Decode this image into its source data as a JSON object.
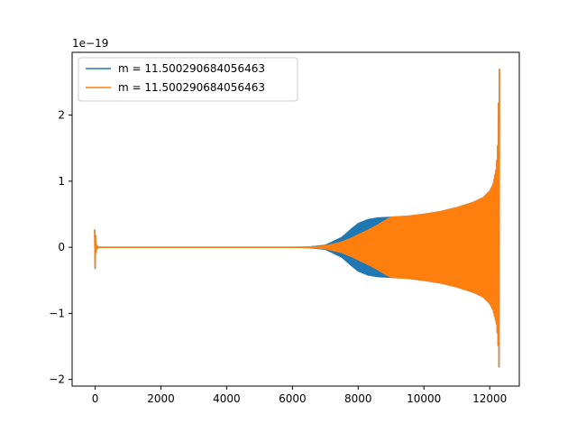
{
  "chart_data": {
    "type": "line",
    "offset_text": "1e−19",
    "xlim": [
      -700,
      12900
    ],
    "ylim": [
      -2.1,
      2.95
    ],
    "x_ticks": [
      0,
      2000,
      4000,
      6000,
      8000,
      10000,
      12000
    ],
    "x_tick_labels": [
      "0",
      "2000",
      "4000",
      "6000",
      "8000",
      "10000",
      "12000"
    ],
    "y_ticks": [
      -2,
      -1,
      0,
      1,
      2
    ],
    "y_tick_labels": [
      "−2",
      "−1",
      "0",
      "1",
      "2"
    ],
    "legend_position": "upper-left",
    "series": [
      {
        "name": "m = 11.500290684056463",
        "color": "#1f77b4",
        "initial_transient": {
          "x": [
            0,
            30,
            60,
            100
          ],
          "y_max": [
            0.27,
            0.05,
            0.02,
            0.0
          ],
          "y_min": [
            -0.32,
            -0.05,
            -0.02,
            0.0
          ]
        },
        "envelope": {
          "x": [
            6000,
            6500,
            7000,
            7500,
            7800,
            8000,
            8300,
            8600,
            9000,
            9500,
            10000,
            10500,
            11000,
            11500,
            11800,
            12000,
            12100,
            12200,
            12250,
            12270,
            12290
          ],
          "y_max": [
            0.0,
            0.005,
            0.03,
            0.15,
            0.28,
            0.36,
            0.42,
            0.445,
            0.455,
            0.47,
            0.5,
            0.54,
            0.6,
            0.68,
            0.75,
            0.85,
            0.95,
            1.2,
            1.6,
            2.2,
            2.7
          ],
          "y_min": [
            0.0,
            -0.005,
            -0.03,
            -0.15,
            -0.28,
            -0.36,
            -0.42,
            -0.445,
            -0.455,
            -0.47,
            -0.5,
            -0.54,
            -0.6,
            -0.68,
            -0.75,
            -0.85,
            -0.95,
            -1.15,
            -1.4,
            -1.7,
            -1.87
          ]
        }
      },
      {
        "name": "m = 11.500290684056463",
        "color": "#ff7f0e",
        "initial_transient": {
          "x": [
            0,
            30,
            60,
            100
          ],
          "y_max": [
            0.27,
            0.05,
            0.02,
            0.0
          ],
          "y_min": [
            -0.32,
            -0.05,
            -0.02,
            0.0
          ]
        },
        "envelope": {
          "x": [
            6000,
            6500,
            7000,
            7500,
            7800,
            8000,
            8300,
            8600,
            8800,
            9000,
            9500,
            10000,
            10500,
            11000,
            11500,
            11800,
            12000,
            12100,
            12200,
            12250,
            12270,
            12290
          ],
          "y_max": [
            0.0,
            0.003,
            0.02,
            0.08,
            0.14,
            0.19,
            0.26,
            0.34,
            0.4,
            0.455,
            0.47,
            0.5,
            0.54,
            0.6,
            0.68,
            0.75,
            0.85,
            0.95,
            1.2,
            1.6,
            2.2,
            2.7
          ],
          "y_min": [
            0.0,
            -0.003,
            -0.02,
            -0.08,
            -0.14,
            -0.19,
            -0.26,
            -0.34,
            -0.4,
            -0.455,
            -0.47,
            -0.5,
            -0.54,
            -0.6,
            -0.68,
            -0.75,
            -0.85,
            -0.95,
            -1.15,
            -1.4,
            -1.7,
            -1.87
          ]
        }
      }
    ]
  }
}
